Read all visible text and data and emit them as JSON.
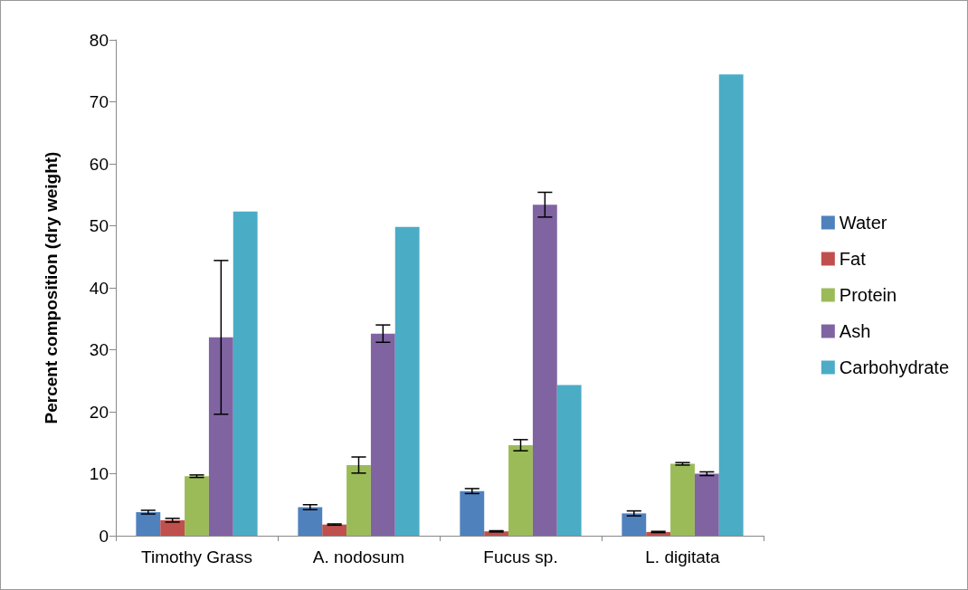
{
  "chart_data": {
    "type": "bar",
    "ylabel": "Percent composition (dry weight)",
    "categories": [
      "Timothy Grass",
      "A. nodosum",
      "Fucus sp.",
      "L. digitata"
    ],
    "series": [
      {
        "name": "Water",
        "color": "#4f81bd",
        "values": [
          3.8,
          4.6,
          7.2,
          3.6
        ],
        "errors": [
          0.3,
          0.4,
          0.4,
          0.4
        ]
      },
      {
        "name": "Fat",
        "color": "#c0504d",
        "values": [
          2.5,
          1.8,
          0.7,
          0.6
        ],
        "errors": [
          0.3,
          0.1,
          0.1,
          0.1
        ]
      },
      {
        "name": "Protein",
        "color": "#9bbb59",
        "values": [
          9.6,
          11.4,
          14.6,
          11.6
        ],
        "errors": [
          0.2,
          1.3,
          0.9,
          0.2
        ]
      },
      {
        "name": "Ash",
        "color": "#8064a2",
        "values": [
          32.0,
          32.6,
          53.4,
          10.0
        ],
        "errors": [
          12.4,
          1.4,
          2.0,
          0.3
        ]
      },
      {
        "name": "Carbohydrate",
        "color": "#4bacc6",
        "values": [
          52.3,
          49.8,
          24.3,
          74.4
        ]
      }
    ],
    "ylim": [
      0,
      80
    ],
    "yticks": [
      0,
      10,
      20,
      30,
      40,
      50,
      60,
      70,
      80
    ],
    "grid": false,
    "legend": "right"
  }
}
